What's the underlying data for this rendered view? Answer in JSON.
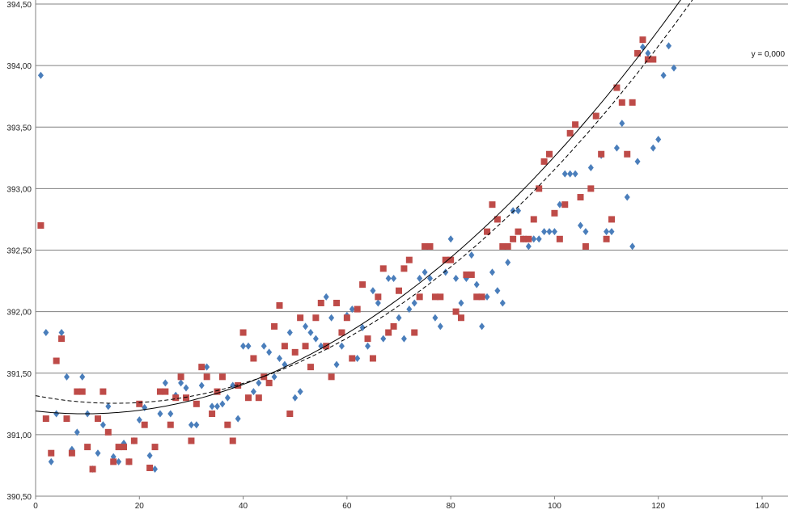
{
  "chart_data": {
    "type": "scatter",
    "title": "",
    "xlabel": "",
    "ylabel": "",
    "xlim": [
      0,
      140
    ],
    "ylim": [
      390.5,
      394.5
    ],
    "grid": true,
    "xticks": [
      0,
      20,
      40,
      60,
      80,
      100,
      120,
      140
    ],
    "xtick_labels": [
      "0",
      "20",
      "40",
      "60",
      "80",
      "100",
      "120",
      "140"
    ],
    "yticks": [
      390.5,
      391.0,
      391.5,
      392.0,
      392.5,
      393.0,
      393.5,
      394.0,
      394.5
    ],
    "ytick_labels": [
      "390,50",
      "391,00",
      "391,50",
      "392,00",
      "392,50",
      "393,00",
      "393,50",
      "394,00",
      "394,50"
    ],
    "annotation": "y = 0,000",
    "colors": {
      "blue_series": "#4a7ebb",
      "red_series": "#be4b48",
      "grid": "#808080",
      "trend": "#000000"
    },
    "series": [
      {
        "marker": "diamond",
        "color": "#4a7ebb",
        "points": [
          [
            1,
            393.92
          ],
          [
            2,
            391.83
          ],
          [
            3,
            390.78
          ],
          [
            4,
            391.17
          ],
          [
            5,
            391.83
          ],
          [
            6,
            391.47
          ],
          [
            7,
            390.88
          ],
          [
            8,
            391.02
          ],
          [
            9,
            391.47
          ],
          [
            10,
            391.17
          ],
          [
            11,
            390.72
          ],
          [
            12,
            390.85
          ],
          [
            13,
            391.08
          ],
          [
            14,
            391.23
          ],
          [
            15,
            390.82
          ],
          [
            16,
            390.78
          ],
          [
            17,
            390.93
          ],
          [
            18,
            390.78
          ],
          [
            19,
            390.95
          ],
          [
            20,
            391.12
          ],
          [
            21,
            391.22
          ],
          [
            22,
            390.83
          ],
          [
            23,
            390.72
          ],
          [
            24,
            391.17
          ],
          [
            25,
            391.42
          ],
          [
            26,
            391.17
          ],
          [
            27,
            391.32
          ],
          [
            28,
            391.42
          ],
          [
            29,
            391.38
          ],
          [
            30,
            391.08
          ],
          [
            31,
            391.08
          ],
          [
            32,
            391.4
          ],
          [
            33,
            391.55
          ],
          [
            34,
            391.23
          ],
          [
            35,
            391.23
          ],
          [
            36,
            391.25
          ],
          [
            37,
            391.3
          ],
          [
            38,
            391.4
          ],
          [
            39,
            391.13
          ],
          [
            40,
            391.72
          ],
          [
            41,
            391.72
          ],
          [
            42,
            391.35
          ],
          [
            43,
            391.42
          ],
          [
            44,
            391.72
          ],
          [
            45,
            391.67
          ],
          [
            46,
            391.47
          ],
          [
            47,
            391.62
          ],
          [
            48,
            391.57
          ],
          [
            49,
            391.83
          ],
          [
            50,
            391.3
          ],
          [
            51,
            391.35
          ],
          [
            52,
            391.88
          ],
          [
            53,
            391.83
          ],
          [
            54,
            391.78
          ],
          [
            55,
            391.72
          ],
          [
            56,
            392.12
          ],
          [
            57,
            391.95
          ],
          [
            58,
            391.57
          ],
          [
            59,
            391.72
          ],
          [
            60,
            391.97
          ],
          [
            61,
            392.02
          ],
          [
            62,
            391.62
          ],
          [
            63,
            391.87
          ],
          [
            64,
            391.72
          ],
          [
            65,
            392.17
          ],
          [
            66,
            392.07
          ],
          [
            67,
            391.78
          ],
          [
            68,
            392.27
          ],
          [
            69,
            392.27
          ],
          [
            70,
            391.95
          ],
          [
            71,
            391.78
          ],
          [
            72,
            392.02
          ],
          [
            73,
            392.07
          ],
          [
            74,
            392.27
          ],
          [
            75,
            392.32
          ],
          [
            76,
            392.27
          ],
          [
            77,
            391.95
          ],
          [
            78,
            391.88
          ],
          [
            79,
            392.32
          ],
          [
            80,
            392.59
          ],
          [
            81,
            392.27
          ],
          [
            82,
            392.07
          ],
          [
            83,
            392.27
          ],
          [
            84,
            392.46
          ],
          [
            85,
            392.22
          ],
          [
            86,
            391.88
          ],
          [
            87,
            392.12
          ],
          [
            88,
            392.32
          ],
          [
            89,
            392.17
          ],
          [
            90,
            392.07
          ],
          [
            91,
            392.4
          ],
          [
            92,
            392.82
          ],
          [
            93,
            392.82
          ],
          [
            94,
            392.59
          ],
          [
            95,
            392.53
          ],
          [
            96,
            392.59
          ],
          [
            97,
            392.59
          ],
          [
            98,
            392.65
          ],
          [
            99,
            392.65
          ],
          [
            100,
            392.65
          ],
          [
            101,
            392.87
          ],
          [
            102,
            393.12
          ],
          [
            103,
            393.12
          ],
          [
            104,
            393.12
          ],
          [
            105,
            392.7
          ],
          [
            106,
            392.65
          ],
          [
            107,
            393.17
          ],
          [
            108,
            393.59
          ],
          [
            109,
            393.27
          ],
          [
            110,
            392.65
          ],
          [
            111,
            392.65
          ],
          [
            112,
            393.33
          ],
          [
            113,
            393.53
          ],
          [
            114,
            392.93
          ],
          [
            115,
            392.53
          ],
          [
            116,
            393.22
          ],
          [
            117,
            394.15
          ],
          [
            118,
            394.1
          ],
          [
            119,
            393.33
          ],
          [
            120,
            393.4
          ],
          [
            121,
            393.92
          ],
          [
            122,
            394.16
          ],
          [
            123,
            393.98
          ]
        ]
      },
      {
        "marker": "square",
        "color": "#be4b48",
        "points": [
          [
            1,
            392.7
          ],
          [
            2,
            391.13
          ],
          [
            3,
            390.85
          ],
          [
            4,
            391.6
          ],
          [
            5,
            391.78
          ],
          [
            6,
            391.13
          ],
          [
            7,
            390.85
          ],
          [
            8,
            391.35
          ],
          [
            9,
            391.35
          ],
          [
            10,
            390.9
          ],
          [
            11,
            390.72
          ],
          [
            12,
            391.13
          ],
          [
            13,
            391.35
          ],
          [
            14,
            391.02
          ],
          [
            15,
            390.78
          ],
          [
            16,
            390.9
          ],
          [
            17,
            390.9
          ],
          [
            18,
            390.78
          ],
          [
            19,
            390.95
          ],
          [
            20,
            391.25
          ],
          [
            21,
            391.08
          ],
          [
            22,
            390.73
          ],
          [
            23,
            390.9
          ],
          [
            24,
            391.35
          ],
          [
            25,
            391.35
          ],
          [
            26,
            391.08
          ],
          [
            27,
            391.3
          ],
          [
            28,
            391.47
          ],
          [
            29,
            391.3
          ],
          [
            30,
            390.95
          ],
          [
            31,
            391.25
          ],
          [
            32,
            391.55
          ],
          [
            33,
            391.47
          ],
          [
            34,
            391.17
          ],
          [
            35,
            391.35
          ],
          [
            36,
            391.47
          ],
          [
            37,
            391.08
          ],
          [
            38,
            390.95
          ],
          [
            39,
            391.4
          ],
          [
            40,
            391.83
          ],
          [
            41,
            391.3
          ],
          [
            42,
            391.62
          ],
          [
            43,
            391.3
          ],
          [
            44,
            391.47
          ],
          [
            45,
            391.42
          ],
          [
            46,
            391.88
          ],
          [
            47,
            392.05
          ],
          [
            48,
            391.72
          ],
          [
            49,
            391.17
          ],
          [
            50,
            391.67
          ],
          [
            51,
            391.95
          ],
          [
            52,
            391.72
          ],
          [
            53,
            391.55
          ],
          [
            54,
            391.95
          ],
          [
            55,
            392.07
          ],
          [
            56,
            391.72
          ],
          [
            57,
            391.47
          ],
          [
            58,
            392.07
          ],
          [
            59,
            391.83
          ],
          [
            60,
            391.95
          ],
          [
            61,
            391.62
          ],
          [
            62,
            392.02
          ],
          [
            63,
            392.22
          ],
          [
            64,
            391.78
          ],
          [
            65,
            391.62
          ],
          [
            66,
            392.12
          ],
          [
            67,
            392.35
          ],
          [
            68,
            391.83
          ],
          [
            69,
            391.88
          ],
          [
            70,
            392.17
          ],
          [
            71,
            392.35
          ],
          [
            72,
            392.42
          ],
          [
            73,
            391.83
          ],
          [
            74,
            392.12
          ],
          [
            75,
            392.53
          ],
          [
            76,
            392.53
          ],
          [
            77,
            392.12
          ],
          [
            78,
            392.12
          ],
          [
            79,
            392.42
          ],
          [
            80,
            392.42
          ],
          [
            81,
            392.0
          ],
          [
            82,
            391.95
          ],
          [
            83,
            392.3
          ],
          [
            84,
            392.3
          ],
          [
            85,
            392.12
          ],
          [
            86,
            392.12
          ],
          [
            87,
            392.65
          ],
          [
            88,
            392.87
          ],
          [
            89,
            392.75
          ],
          [
            90,
            392.53
          ],
          [
            91,
            392.53
          ],
          [
            92,
            392.59
          ],
          [
            93,
            392.65
          ],
          [
            94,
            392.59
          ],
          [
            95,
            392.59
          ],
          [
            96,
            392.75
          ],
          [
            97,
            393.0
          ],
          [
            98,
            393.22
          ],
          [
            99,
            393.28
          ],
          [
            100,
            392.8
          ],
          [
            101,
            392.59
          ],
          [
            102,
            392.87
          ],
          [
            103,
            393.45
          ],
          [
            104,
            393.52
          ],
          [
            105,
            392.93
          ],
          [
            106,
            392.53
          ],
          [
            107,
            393.0
          ],
          [
            108,
            393.59
          ],
          [
            109,
            393.28
          ],
          [
            110,
            392.59
          ],
          [
            111,
            392.75
          ],
          [
            112,
            393.82
          ],
          [
            113,
            393.7
          ],
          [
            114,
            393.28
          ],
          [
            115,
            393.7
          ],
          [
            116,
            394.1
          ],
          [
            117,
            394.21
          ],
          [
            118,
            394.05
          ],
          [
            119,
            394.05
          ]
        ]
      }
    ],
    "trendlines": [
      {
        "style": "solid",
        "coeffs": [
          0.0002547,
          -0.004778,
          391.192
        ]
      },
      {
        "style": "dashed",
        "coeffs": [
          0.0002648,
          -0.008101,
          391.317
        ]
      }
    ]
  }
}
